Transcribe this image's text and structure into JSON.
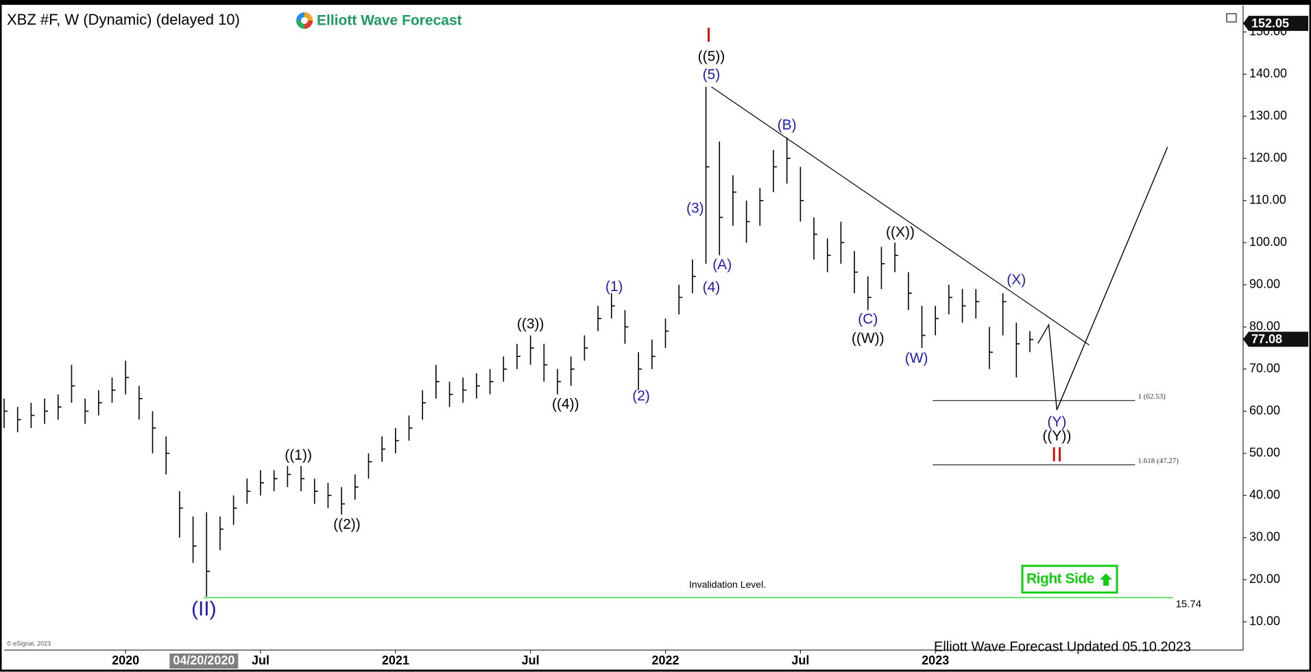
{
  "chart_data": {
    "type": "ohlc",
    "title": "XBZ #F, W (Dynamic) (delayed 10)",
    "brand": "Elliott Wave Forecast",
    "footer": "Elliott Wave Forecast Updated 05.10.2023",
    "copyright": "© eSignal, 2023",
    "badge": "Right Side",
    "color": "#000000",
    "xlim": [
      2019.55,
      2024.14
    ],
    "ylim": [
      3.3,
      156.3
    ],
    "xticks": [
      2020,
      {
        "value": 2020.5,
        "label": "Jul"
      },
      2021,
      {
        "value": 2021.5,
        "label": "Jul"
      },
      2022,
      {
        "value": 2022.5,
        "label": "Jul"
      },
      2023
    ],
    "cursor": {
      "value": 2020.29,
      "label": "04/20/2020"
    },
    "yticks": [
      {
        "value": 10,
        "label": "10.00"
      },
      {
        "value": 20,
        "label": "20.00"
      },
      {
        "value": 30,
        "label": "30.00"
      },
      {
        "value": 40,
        "label": "40.00"
      },
      {
        "value": 50,
        "label": "50.00"
      },
      {
        "value": 60,
        "label": "60.00"
      },
      {
        "value": 70,
        "label": "70.00"
      },
      {
        "value": 80,
        "label": "80.00"
      },
      {
        "value": 90,
        "label": "90.00"
      },
      {
        "value": 100,
        "label": "100.00"
      },
      {
        "value": 110,
        "label": "110.00"
      },
      {
        "value": 120,
        "label": "120.00"
      },
      {
        "value": 130,
        "label": "130.00"
      },
      {
        "value": 140,
        "label": "140.00"
      },
      {
        "value": 150,
        "label": "150.00"
      }
    ],
    "top_price": 152.05,
    "last_price": 77.08,
    "x": [
      2019.55,
      2019.6,
      2019.65,
      2019.7,
      2019.75,
      2019.8,
      2019.85,
      2019.9,
      2019.95,
      2020.0,
      2020.05,
      2020.1,
      2020.15,
      2020.2,
      2020.25,
      2020.3,
      2020.35,
      2020.4,
      2020.45,
      2020.5,
      2020.55,
      2020.6,
      2020.65,
      2020.7,
      2020.75,
      2020.8,
      2020.85,
      2020.9,
      2020.95,
      2021.0,
      2021.05,
      2021.1,
      2021.15,
      2021.2,
      2021.25,
      2021.3,
      2021.35,
      2021.4,
      2021.45,
      2021.5,
      2021.55,
      2021.6,
      2021.65,
      2021.7,
      2021.75,
      2021.8,
      2021.85,
      2021.9,
      2021.95,
      2022.0,
      2022.05,
      2022.1,
      2022.15,
      2022.2,
      2022.25,
      2022.3,
      2022.35,
      2022.4,
      2022.45,
      2022.5,
      2022.55,
      2022.6,
      2022.65,
      2022.7,
      2022.75,
      2022.8,
      2022.85,
      2022.9,
      2022.95,
      2023.0,
      2023.05,
      2023.1,
      2023.15,
      2023.2,
      2023.25,
      2023.3,
      2023.35
    ],
    "high": [
      63,
      61,
      62,
      63,
      64,
      71,
      63,
      65,
      68,
      72,
      66,
      60,
      54,
      41,
      35,
      36,
      35,
      40,
      44,
      46,
      46,
      47,
      47,
      44,
      43,
      42,
      45,
      50,
      54,
      56,
      59,
      65,
      71,
      67,
      68,
      69,
      70,
      73,
      76,
      78,
      76,
      70,
      73,
      78,
      85,
      88,
      84,
      74,
      77,
      82,
      90,
      96,
      137,
      124,
      116,
      110,
      113,
      122,
      125,
      118,
      106,
      101,
      105,
      98,
      92,
      99,
      100,
      93,
      85,
      85,
      90,
      89,
      89,
      80,
      88,
      81,
      79
    ],
    "low": [
      56,
      55,
      56,
      57,
      58,
      62,
      57,
      59,
      62,
      64,
      58,
      50,
      45,
      30,
      24,
      16,
      27,
      33,
      38,
      40,
      41,
      42,
      41,
      38,
      37,
      35.5,
      39,
      44,
      48,
      50,
      53,
      58,
      63,
      61,
      62,
      63,
      64,
      67,
      70,
      71,
      67,
      64,
      66,
      72,
      79,
      82,
      76,
      65,
      70,
      75,
      83,
      88,
      95,
      97,
      104,
      100,
      104,
      112,
      114,
      105,
      96,
      93,
      95,
      88,
      84,
      89,
      93,
      84,
      75,
      78,
      83,
      81,
      82,
      70,
      78,
      68,
      74
    ],
    "close": [
      60,
      58,
      59,
      60,
      61,
      66,
      60,
      62,
      65,
      68,
      63,
      56,
      50,
      37,
      28,
      22,
      32,
      37,
      41,
      43,
      44,
      45,
      44,
      41,
      40,
      38,
      42,
      48,
      51,
      53,
      56,
      62,
      67,
      64,
      65,
      66,
      67,
      70,
      73,
      75,
      71,
      67,
      70,
      75,
      82,
      85,
      80,
      70,
      73,
      79,
      87,
      92,
      118,
      106,
      112,
      105,
      110,
      118,
      120,
      110,
      102,
      97,
      100,
      93,
      87,
      95,
      97,
      88,
      78,
      82,
      87,
      85,
      86,
      74,
      86,
      76,
      77
    ],
    "levels": [
      {
        "value": 62.53,
        "label": "1 (62.53)"
      },
      {
        "value": 47.27,
        "label": "1.618 (47.27)"
      }
    ],
    "invalidation": {
      "value": 15.74,
      "label": "15.74",
      "text": "Invalidation Level.",
      "color": "#33dd33"
    },
    "annotations": [
      {
        "text": "I",
        "color": "#e00000"
      },
      {
        "text": "((5))",
        "color": "#000000"
      },
      {
        "text": "(5)",
        "color": "#1c1cb4"
      },
      {
        "text": "(B)",
        "color": "#1c1cb4"
      },
      {
        "text": "(3)",
        "color": "#1c1cb4"
      },
      {
        "text": "(A)",
        "color": "#1c1cb4"
      },
      {
        "text": "(4)",
        "color": "#1c1cb4"
      },
      {
        "text": "(1)",
        "color": "#1c1cb4"
      },
      {
        "text": "((3))",
        "color": "#000000"
      },
      {
        "text": "((4))",
        "color": "#000000"
      },
      {
        "text": "(2)",
        "color": "#1c1cb4"
      },
      {
        "text": "((1))",
        "color": "#000000"
      },
      {
        "text": "((2))",
        "color": "#000000"
      },
      {
        "text": "(II)",
        "color": "#1c1cb4"
      },
      {
        "text": "((X))",
        "color": "#000000"
      },
      {
        "text": "(C)",
        "color": "#1c1cb4"
      },
      {
        "text": "((W))",
        "color": "#000000"
      },
      {
        "text": "(W)",
        "color": "#1c1cb4"
      },
      {
        "text": "(X)",
        "color": "#1c1cb4"
      },
      {
        "text": "(Y)",
        "color": "#1c1cb4"
      },
      {
        "text": "((Y))",
        "color": "#000000"
      },
      {
        "text": "II",
        "color": "#e00000"
      }
    ]
  }
}
